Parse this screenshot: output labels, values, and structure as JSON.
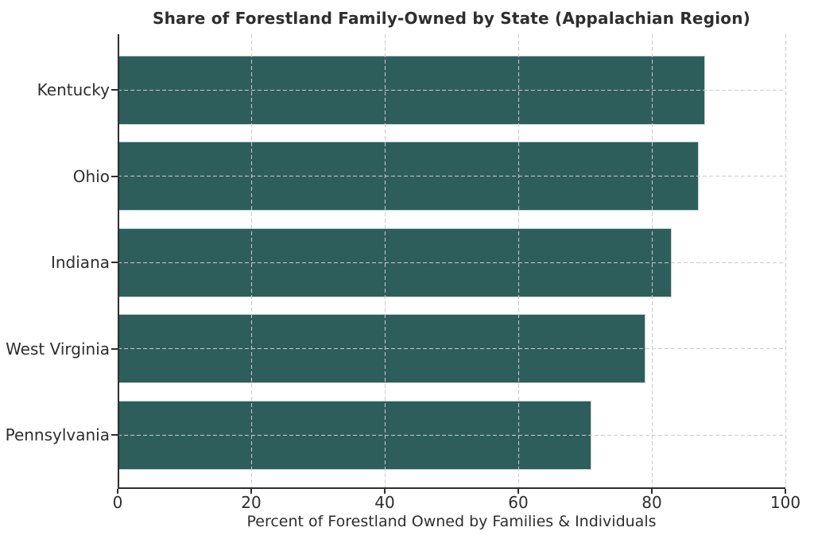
{
  "chart_data": {
    "type": "bar",
    "orientation": "horizontal",
    "title": "Share of Forestland Family-Owned by State (Appalachian Region)",
    "xlabel": "Percent of Forestland Owned by Families & Individuals",
    "ylabel": "",
    "categories": [
      "Kentucky",
      "Ohio",
      "Indiana",
      "West Virginia",
      "Pennsylvania"
    ],
    "values": [
      88,
      87,
      83,
      79,
      71
    ],
    "xlim": [
      0,
      100
    ],
    "x_ticks": [
      0,
      20,
      40,
      60,
      80,
      100
    ],
    "grid": "dashed, vertical and horizontal, drawn over bars",
    "legend": "none",
    "colors": {
      "bar_fill": "#2d5e5c",
      "bar_edge": "#c3d4d2",
      "grid_line": "#cbcbcb",
      "axis_and_text": "#2e2e2e",
      "background": "#ffffff"
    }
  }
}
